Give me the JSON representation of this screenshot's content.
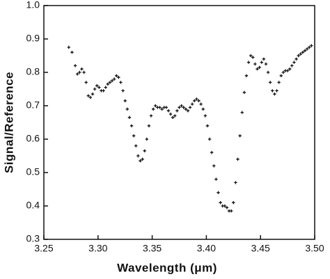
{
  "chart_data": {
    "type": "scatter",
    "xlabel": "Wavelength (μm)",
    "ylabel": "Signal/Reference",
    "color": "#111111",
    "xlim": [
      3.25,
      3.5
    ],
    "xticks": [
      3.25,
      {
        "value": 3.3,
        "label": "3.30"
      },
      3.35,
      {
        "value": 3.4,
        "label": "3.40"
      },
      3.45,
      {
        "value": 3.5,
        "label": "3.50"
      }
    ],
    "ylim": [
      0.3,
      1
    ],
    "yticks": [
      0.3,
      0.4,
      0.5,
      0.6,
      0.7,
      0.8,
      0.9,
      {
        "value": 1,
        "label": "1.0"
      }
    ],
    "x": [
      3.273,
      3.276,
      3.279,
      3.281,
      3.283,
      3.285,
      3.287,
      3.289,
      3.291,
      3.293,
      3.295,
      3.297,
      3.299,
      3.301,
      3.303,
      3.305,
      3.307,
      3.309,
      3.311,
      3.313,
      3.315,
      3.317,
      3.319,
      3.321,
      3.323,
      3.325,
      3.327,
      3.329,
      3.331,
      3.333,
      3.335,
      3.337,
      3.339,
      3.341,
      3.343,
      3.345,
      3.347,
      3.349,
      3.351,
      3.353,
      3.355,
      3.357,
      3.359,
      3.361,
      3.363,
      3.365,
      3.367,
      3.369,
      3.371,
      3.373,
      3.375,
      3.377,
      3.379,
      3.381,
      3.383,
      3.385,
      3.387,
      3.389,
      3.391,
      3.393,
      3.395,
      3.397,
      3.399,
      3.401,
      3.403,
      3.405,
      3.407,
      3.409,
      3.411,
      3.413,
      3.415,
      3.417,
      3.419,
      3.421,
      3.423,
      3.425,
      3.427,
      3.429,
      3.431,
      3.433,
      3.435,
      3.437,
      3.439,
      3.441,
      3.443,
      3.445,
      3.447,
      3.449,
      3.451,
      3.453,
      3.455,
      3.457,
      3.459,
      3.461,
      3.463,
      3.465,
      3.467,
      3.469,
      3.471,
      3.473,
      3.475,
      3.477,
      3.479,
      3.481,
      3.483,
      3.485,
      3.487,
      3.489,
      3.491,
      3.493,
      3.495,
      3.497
    ],
    "values": [
      0.875,
      0.86,
      0.82,
      0.795,
      0.8,
      0.81,
      0.8,
      0.77,
      0.73,
      0.725,
      0.735,
      0.75,
      0.76,
      0.755,
      0.745,
      0.745,
      0.755,
      0.765,
      0.77,
      0.775,
      0.78,
      0.79,
      0.785,
      0.77,
      0.745,
      0.715,
      0.69,
      0.665,
      0.64,
      0.61,
      0.58,
      0.55,
      0.535,
      0.54,
      0.565,
      0.6,
      0.64,
      0.67,
      0.69,
      0.7,
      0.695,
      0.695,
      0.69,
      0.695,
      0.695,
      0.685,
      0.675,
      0.665,
      0.67,
      0.685,
      0.695,
      0.7,
      0.695,
      0.69,
      0.685,
      0.695,
      0.705,
      0.715,
      0.72,
      0.715,
      0.705,
      0.69,
      0.67,
      0.64,
      0.6,
      0.56,
      0.52,
      0.48,
      0.44,
      0.41,
      0.4,
      0.4,
      0.395,
      0.385,
      0.385,
      0.41,
      0.47,
      0.54,
      0.61,
      0.68,
      0.74,
      0.79,
      0.83,
      0.85,
      0.845,
      0.825,
      0.81,
      0.815,
      0.83,
      0.84,
      0.825,
      0.8,
      0.77,
      0.745,
      0.735,
      0.745,
      0.77,
      0.79,
      0.8,
      0.805,
      0.805,
      0.81,
      0.82,
      0.83,
      0.84,
      0.85,
      0.855,
      0.86,
      0.865,
      0.87,
      0.875,
      0.88
    ]
  }
}
